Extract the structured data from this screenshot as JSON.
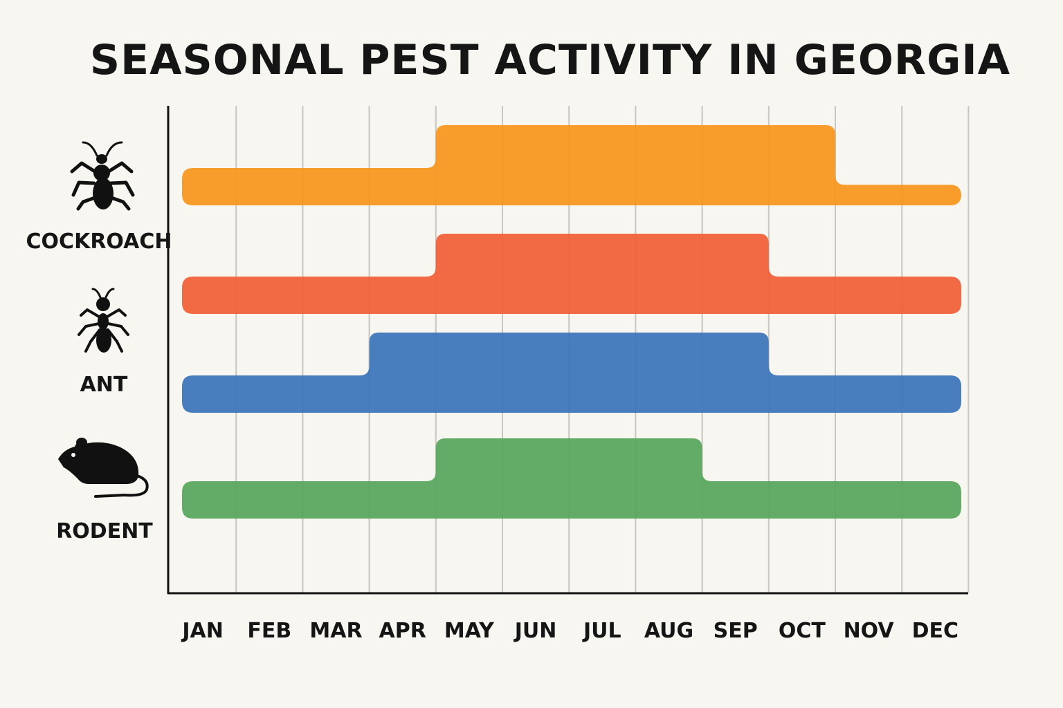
{
  "title": "SEASONAL PEST ACTIVITY IN GEORGIA",
  "chart_data": {
    "type": "area",
    "title": "SEASONAL PEST ACTIVITY IN GEORGIA",
    "categories": [
      "JAN",
      "FEB",
      "MAR",
      "APR",
      "MAY",
      "JUN",
      "JUL",
      "AUG",
      "SEP",
      "OCT",
      "NOV",
      "DEC"
    ],
    "grid": true,
    "series": [
      {
        "name": "COCKROACH",
        "icon": "cockroach-icon",
        "color": "#f7941d",
        "high_activity": [
          "MAY",
          "JUN",
          "JUL",
          "AUG",
          "SEP",
          "OCT"
        ],
        "values": [
          1,
          1,
          1,
          1,
          2,
          2,
          2,
          2,
          2,
          2,
          0.55,
          0.55
        ]
      },
      {
        "name": "ANT",
        "icon": "ant-icon",
        "color": "#f05f37",
        "high_activity": [
          "MAY",
          "JUN",
          "JUL",
          "AUG",
          "SEP"
        ],
        "values": [
          1,
          1,
          1,
          1,
          2,
          2,
          2,
          2,
          2,
          1,
          1,
          1
        ]
      },
      {
        "name": "",
        "icon": "",
        "color": "#3a74b9",
        "high_activity": [
          "APR",
          "MAY",
          "JUN",
          "JUL",
          "AUG",
          "SEP"
        ],
        "values": [
          1,
          1,
          1,
          2,
          2,
          2,
          2,
          2,
          2,
          1,
          1,
          1
        ]
      },
      {
        "name": "RODENT",
        "icon": "rodent-icon",
        "color": "#56a65c",
        "high_activity": [
          "MAY",
          "JUN",
          "JUL",
          "AUG"
        ],
        "values": [
          1,
          1,
          1,
          1,
          2,
          2,
          2,
          2,
          1,
          1,
          1,
          1
        ]
      }
    ]
  }
}
